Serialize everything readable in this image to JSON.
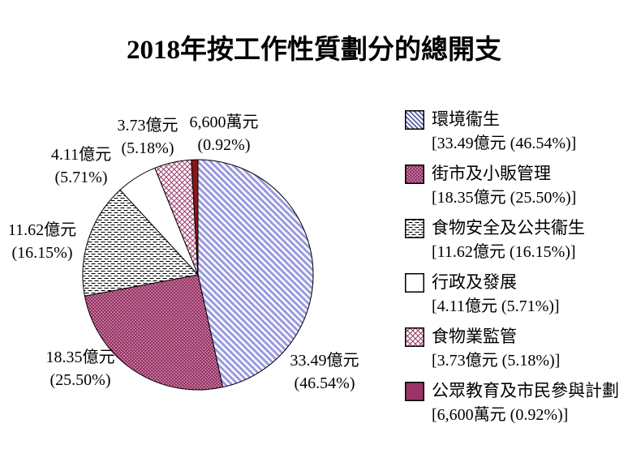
{
  "title": "2018年按工作性質劃分的總開支",
  "colors": {
    "background": "#ffffff",
    "text": "#000000",
    "outline": "#000000",
    "hatch_stripe": "#9A9AE0",
    "legend_hatch_stripe": "#3A3A99",
    "plum": "#993366",
    "dark_red": "#8B1616",
    "legend_solid": "#9C3468"
  },
  "chart_data": {
    "type": "pie",
    "title": "2018年按工作性質劃分的總開支",
    "unit": "億元",
    "start_angle_deg": 0,
    "direction": "clockwise",
    "legend_position": "right",
    "slices": [
      {
        "name": "環境衞生",
        "value": 33.49,
        "value_label": "33.49億元",
        "pct": 46.54,
        "pct_label": "(46.54%)",
        "legend_label": "[33.49億元 (46.54%)]",
        "pattern": "diagonal-hatch"
      },
      {
        "name": "街市及小販管理",
        "value": 18.35,
        "value_label": "18.35億元",
        "pct": 25.5,
        "pct_label": "(25.50%)",
        "legend_label": "[18.35億元 (25.50%)]",
        "pattern": "dots"
      },
      {
        "name": "食物安全及公共衞生",
        "value": 11.62,
        "value_label": "11.62億元",
        "pct": 16.15,
        "pct_label": "(16.15%)",
        "legend_label": "[11.62億元 (16.15%)]",
        "pattern": "dash"
      },
      {
        "name": "行政及發展",
        "value": 4.11,
        "value_label": "4.11億元",
        "pct": 5.71,
        "pct_label": "(5.71%)",
        "legend_label": "[4.11億元 (5.71%)]",
        "pattern": "plain"
      },
      {
        "name": "食物業監管",
        "value": 3.73,
        "value_label": "3.73億元",
        "pct": 5.18,
        "pct_label": "(5.18%)",
        "legend_label": "[3.73億元 (5.18%)]",
        "pattern": "cross"
      },
      {
        "name": "公眾教育及市民參與計劃",
        "value": 0.66,
        "value_label": "6,600萬元",
        "pct": 0.92,
        "pct_label": "(0.92%)",
        "legend_label": "[6,600萬元 (0.92%)]",
        "pattern": "solid"
      }
    ]
  }
}
